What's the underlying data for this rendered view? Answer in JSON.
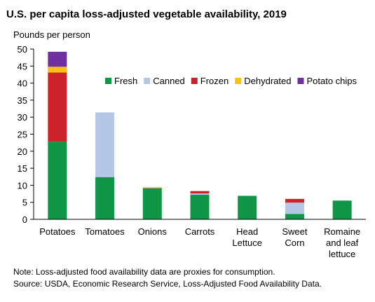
{
  "chart_data": {
    "type": "bar",
    "stacked": true,
    "title": "U.S. per capita loss-adjusted vegetable availability, 2019",
    "ylabel": "Pounds per person",
    "ylim": [
      0,
      50
    ],
    "yticks": [
      0,
      5,
      10,
      15,
      20,
      25,
      30,
      35,
      40,
      45,
      50
    ],
    "grid": false,
    "legend_placement": "top-right",
    "categories": [
      [
        "Potatoes"
      ],
      [
        "Tomatoes"
      ],
      [
        "Onions"
      ],
      [
        "Carrots"
      ],
      [
        "Head",
        "Lettuce"
      ],
      [
        "Sweet",
        "Corn"
      ],
      [
        "Romaine",
        "and leaf",
        "lettuce"
      ]
    ],
    "series": [
      {
        "name": "Fresh",
        "color": "#0f9647",
        "values": [
          22.8,
          12.4,
          9.1,
          7.2,
          6.9,
          1.6,
          5.5
        ]
      },
      {
        "name": "Canned",
        "color": "#b4c7e7",
        "values": [
          0,
          19.0,
          0,
          0.4,
          0,
          3.3,
          0
        ]
      },
      {
        "name": "Frozen",
        "color": "#cc2229",
        "values": [
          20.3,
          0,
          0.1,
          0.7,
          0,
          1.1,
          0
        ]
      },
      {
        "name": "Dehydrated",
        "color": "#fdbf13",
        "values": [
          1.7,
          0,
          0.2,
          0,
          0,
          0,
          0
        ]
      },
      {
        "name": "Potato chips",
        "color": "#7030a0",
        "values": [
          4.4,
          0,
          0,
          0,
          0,
          0,
          0
        ]
      }
    ],
    "notes": [
      "Note: Loss-adjusted food availability data are proxies for consumption.",
      "Source: USDA, Economic Research Service, Loss-Adjusted Food Availability Data."
    ]
  }
}
